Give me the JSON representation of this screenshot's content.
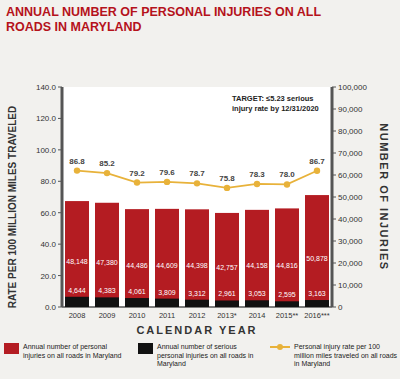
{
  "chart_data": {
    "type": "bar",
    "title": "ANNUAL NUMBER OF PERSONAL INJURIES ON ALL ROADS IN MARYLAND",
    "annotation": "TARGET: ≤5.23 serious injury rate by 12/31/2020",
    "x_label": "CALENDAR YEAR",
    "y_label": "RATE PER 100 MILLION MILES TRAVELED",
    "y2_label": "NUMBER OF INJURIES",
    "categories": [
      "2008",
      "2009",
      "2010",
      "2011",
      "2012",
      "2013*",
      "2014",
      "2015**",
      "2016***"
    ],
    "series": [
      {
        "name": "Annual number of personal injuries on all roads in Maryland",
        "type": "bar",
        "axis": "y2",
        "color": "#b41c22",
        "values": [
          48148,
          47380,
          44486,
          44609,
          44398,
          42757,
          44158,
          44816,
          50878
        ],
        "value_labels": [
          "48,148",
          "47,380",
          "44,486",
          "44,609",
          "44,398",
          "42,757",
          "44,158",
          "44,816",
          "50,878"
        ]
      },
      {
        "name": "Annual number of serious personal injuries on all roads in Maryland",
        "type": "bar",
        "axis": "y2",
        "color": "#111111",
        "values": [
          4644,
          4383,
          4061,
          3809,
          3312,
          2961,
          3053,
          2595,
          3163
        ],
        "value_labels": [
          "4,644",
          "4,383",
          "4,061",
          "3,809",
          "3,312",
          "2,961",
          "3,053",
          "2,595",
          "3,163"
        ]
      },
      {
        "name": "Personal injury rate per 100 million miles traveled on all roads in Maryland",
        "type": "line",
        "axis": "y",
        "color": "#e8b23a",
        "marker": "circle",
        "values": [
          86.8,
          85.2,
          79.2,
          79.6,
          78.7,
          75.8,
          78.3,
          78.0,
          86.7
        ],
        "value_labels": [
          "86.8",
          "85.2",
          "79.2",
          "79.6",
          "78.7",
          "75.8",
          "78.3",
          "78.0",
          "86.7"
        ]
      }
    ],
    "ylim": [
      0,
      140
    ],
    "yticks": [
      {
        "value": 0,
        "label": "0.0"
      },
      {
        "value": 20,
        "label": "20.0"
      },
      {
        "value": 40,
        "label": "40.0"
      },
      {
        "value": 60,
        "label": "60.0"
      },
      {
        "value": 80,
        "label": "80.0"
      },
      {
        "value": 100,
        "label": "100.0"
      },
      {
        "value": 120,
        "label": "120.0"
      },
      {
        "value": 140,
        "label": "140.0"
      }
    ],
    "y2lim": [
      0,
      100000
    ],
    "y2ticks": [
      0,
      {
        "value": 10000,
        "label": "10,000"
      },
      {
        "value": 20000,
        "label": "20,000"
      },
      {
        "value": 30000,
        "label": "30,000"
      },
      {
        "value": 40000,
        "label": "40,000"
      },
      {
        "value": 50000,
        "label": "50,000"
      },
      {
        "value": 60000,
        "label": "60,000"
      },
      {
        "value": 70000,
        "label": "70,000"
      },
      {
        "value": 80000,
        "label": "80,000"
      },
      {
        "value": 90000,
        "label": "90,000"
      },
      {
        "value": 100000,
        "label": "100,000"
      }
    ],
    "grid": false,
    "data_labels": true,
    "legend": "bottom"
  }
}
